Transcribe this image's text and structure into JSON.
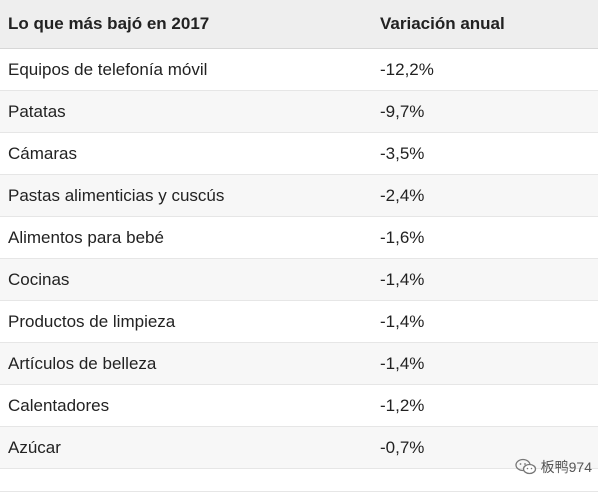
{
  "table": {
    "headers": [
      "Lo que más bajó en 2017",
      "Variación anual"
    ],
    "rows": [
      [
        "Equipos de telefonía móvil",
        "-12,2%"
      ],
      [
        "Patatas",
        "-9,7%"
      ],
      [
        "Cámaras",
        "-3,5%"
      ],
      [
        "Pastas alimenticias y cuscús",
        "-2,4%"
      ],
      [
        "Alimentos para bebé",
        "-1,6%"
      ],
      [
        "Cocinas",
        "-1,4%"
      ],
      [
        "Productos de limpieza",
        "-1,4%"
      ],
      [
        "Artículos de belleza",
        "-1,4%"
      ],
      [
        "Calentadores",
        "-1,2%"
      ],
      [
        "Azúcar",
        "-0,7%"
      ]
    ]
  },
  "watermark": {
    "text": "板鸭974",
    "icon": "wechat-icon"
  },
  "colors": {
    "header_bg": "#eeeeee",
    "alt_row_bg": "#f7f7f7",
    "border": "#e6e6e6",
    "text": "#222222"
  }
}
